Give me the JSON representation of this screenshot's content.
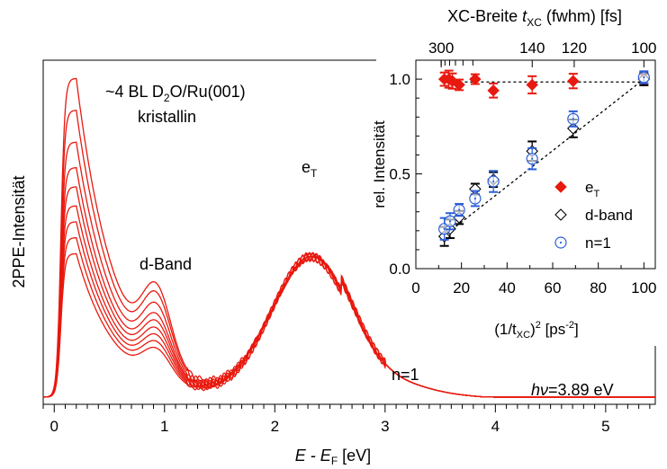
{
  "chart_data": [
    {
      "type": "line",
      "ylabel": "2PPE-Intensität",
      "xlabel": {
        "main": "E - E",
        "sub": "F",
        "unit": " [eV]"
      },
      "xlim": [
        -0.1,
        5.45
      ],
      "xticks": [
        "0",
        "1",
        "2",
        "3",
        "4",
        "5"
      ],
      "annotations": {
        "sample_line1": {
          "pre": "~4 BL D",
          "sub": "2",
          "post": "O/Ru(001)"
        },
        "sample_line2": "kristallin",
        "d_band": "d-Band",
        "eT": {
          "main": "e",
          "sub": "T"
        },
        "n1": "n=1",
        "photon_energy": {
          "italic": "h",
          "italic2": "ν",
          "rest": "=3.89 eV"
        }
      },
      "series": [
        {
          "peak_height": 1.0,
          "dband_height": 0.31
        },
        {
          "peak_height": 0.9,
          "dband_height": 0.29
        },
        {
          "peak_height": 0.8,
          "dband_height": 0.26
        },
        {
          "peak_height": 0.72,
          "dband_height": 0.23
        },
        {
          "peak_height": 0.66,
          "dband_height": 0.21
        },
        {
          "peak_height": 0.6,
          "dband_height": 0.19
        },
        {
          "peak_height": 0.55,
          "dband_height": 0.17
        },
        {
          "peak_height": 0.5,
          "dband_height": 0.15
        },
        {
          "peak_height": 0.45,
          "dband_height": 0.13
        }
      ],
      "color": "#e8190f"
    },
    {
      "type": "scatter",
      "ylabel": "rel. Intensität",
      "xlabel": {
        "pre": "(1/t",
        "sub": "XC",
        "post": ")",
        "sup": "2",
        "unit": " [ps",
        "unitsup": "-2",
        "close": "]"
      },
      "top_label": {
        "pre": "XC-Breite ",
        "t": "t",
        "sub": "XC",
        "post": " (fwhm) [fs]"
      },
      "xlim": [
        0,
        105
      ],
      "ylim": [
        0,
        1.1
      ],
      "xticks": [
        0,
        20,
        40,
        60,
        80,
        100
      ],
      "yticks": [
        "0.0",
        "0.5",
        "1.0"
      ],
      "top_ticks": [
        {
          "label": "300",
          "x": 11.11
        },
        {
          "label": "140",
          "x": 51.02
        },
        {
          "label": "120",
          "x": 69.44
        },
        {
          "label": "100",
          "x": 100
        }
      ],
      "top_minor_x": [
        11.11,
        12.76,
        14.79,
        17.36,
        20.66,
        25.0
      ],
      "series": [
        {
          "name": "e",
          "name_sub": "T",
          "marker": "diamond-filled",
          "color": "#e8190f",
          "x": [
            12.5,
            14.5,
            16,
            19,
            26,
            34,
            51,
            69,
            100
          ],
          "y": [
            1.0,
            1.0,
            0.99,
            0.97,
            1.0,
            0.94,
            0.97,
            0.99,
            1.0
          ]
        },
        {
          "name": "d-band",
          "marker": "diamond-open",
          "color": "#000000",
          "x": [
            12.5,
            15,
            19,
            26,
            34,
            51,
            69,
            100
          ],
          "y": [
            0.17,
            0.21,
            0.27,
            0.42,
            0.47,
            0.62,
            0.74,
            1.0
          ]
        },
        {
          "name": "n=1",
          "marker": "circle-dot",
          "color": "#2b5fd8",
          "x": [
            12.5,
            15,
            19,
            26,
            34,
            51,
            69,
            100
          ],
          "y": [
            0.21,
            0.25,
            0.31,
            0.37,
            0.46,
            0.58,
            0.79,
            1.01
          ]
        }
      ],
      "fit_lines": [
        {
          "style": "dashed",
          "x": [
            12,
            100
          ],
          "y": [
            0.985,
            0.985
          ]
        },
        {
          "style": "dashed",
          "x": [
            12,
            100
          ],
          "y": [
            0.17,
            1.0
          ]
        }
      ]
    }
  ]
}
